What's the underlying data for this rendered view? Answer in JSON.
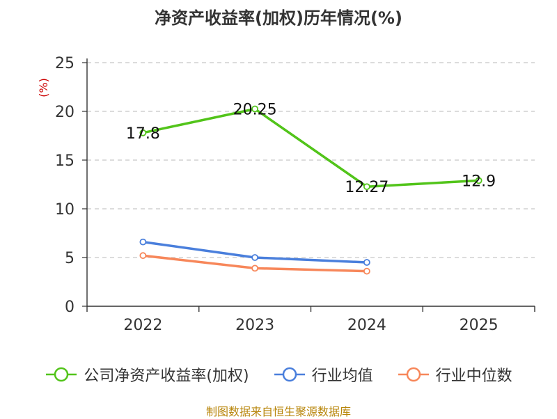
{
  "chart_data": {
    "type": "line",
    "title": "净资产收益率(加权)历年情况(%)",
    "ylabel": "(%)",
    "xlabel": "",
    "categories": [
      "2022",
      "2023",
      "2024",
      "2025"
    ],
    "ylim": [
      0,
      25
    ],
    "yticks": [
      "0",
      "5",
      "10",
      "15",
      "20",
      "25"
    ],
    "grid": true,
    "legend": "bottom",
    "series": [
      {
        "name": "公司净资产收益率(加权)",
        "values": [
          17.8,
          20.25,
          12.27,
          12.9
        ],
        "labels": [
          "17.8",
          "20.25",
          "12.27",
          "12.9"
        ],
        "color": "#52c41a"
      },
      {
        "name": "行业均值",
        "values": [
          6.6,
          5.0,
          4.5,
          null
        ],
        "color": "#4a7fdc"
      },
      {
        "name": "行业中位数",
        "values": [
          5.2,
          3.9,
          3.6,
          null
        ],
        "color": "#f7875a"
      }
    ]
  },
  "source": "制图数据来自恒生聚源数据库"
}
